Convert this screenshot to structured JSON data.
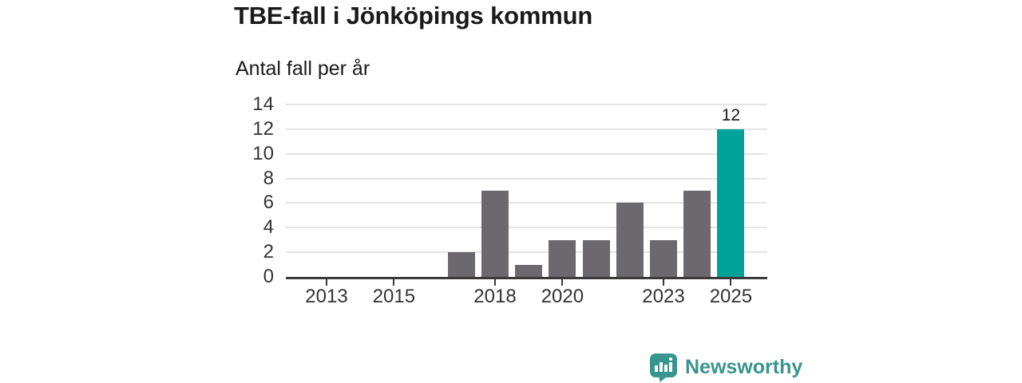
{
  "header": {
    "title": "TBE-fall i Jönköpings kommun",
    "subtitle": "Antal fall per år"
  },
  "chart_data": {
    "type": "bar",
    "title": "TBE-fall i Jönköpings kommun",
    "ylabel": "Antal fall per år",
    "xlabel": "",
    "categories": [
      2012,
      2013,
      2014,
      2015,
      2016,
      2017,
      2018,
      2019,
      2020,
      2021,
      2022,
      2023,
      2024,
      2025
    ],
    "values": [
      0,
      0,
      0,
      0,
      0,
      2,
      7,
      1,
      3,
      3,
      6,
      3,
      7,
      12
    ],
    "x_axis_tick_labels": [
      "2013",
      "2015",
      "2018",
      "2020",
      "2023",
      "2025"
    ],
    "y_axis_tick_labels": [
      "0",
      "2",
      "4",
      "6",
      "8",
      "10",
      "12",
      "14"
    ],
    "y_axis_ticks": [
      0,
      2,
      4,
      6,
      8,
      10,
      12,
      14
    ],
    "ylim": [
      0,
      14
    ],
    "grid": "horizontal",
    "legend": "none",
    "highlight_category": 2025,
    "data_labels": [
      {
        "category": 2025,
        "text": "12"
      }
    ],
    "colors": {
      "bar": "#6b696e",
      "highlight": "#00a39a",
      "gridline": "#e4e4e4",
      "axis": "#3a3a3a",
      "axis_text": "#333333"
    }
  },
  "footer": {
    "brand": "Newsworthy",
    "brand_color": "#38948e",
    "logo_icon": "newsworthy-speech-bubble-bar-chart-icon"
  }
}
